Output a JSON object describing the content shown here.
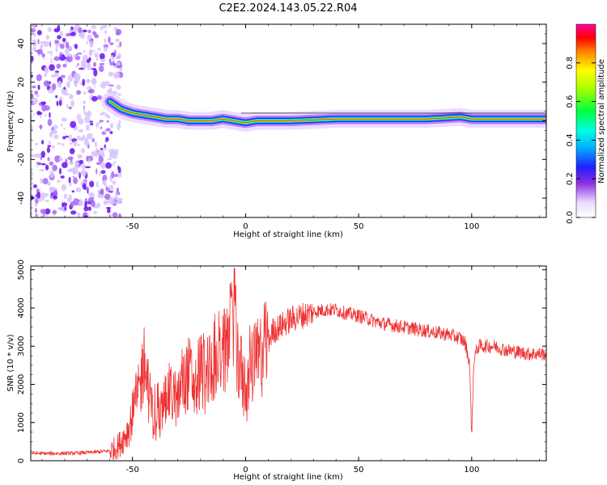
{
  "chart_data": [
    {
      "type": "heatmap",
      "title": "C2E2.2024.143.05.22.R04",
      "xlabel": "Height of straight line (km)",
      "ylabel": "Frequency (Hz)",
      "xlim": [
        -95,
        133
      ],
      "ylim": [
        -50,
        50
      ],
      "x_ticks": [
        "-50",
        "0",
        "50",
        "100"
      ],
      "y_ticks": [
        "-40",
        "-20",
        "0",
        "20",
        "40"
      ],
      "colorbar": {
        "label": "Normalized spectral amplitude",
        "range": [
          0,
          1
        ],
        "ticks": [
          "0.0",
          "0.2",
          "0.4",
          "0.6",
          "0.8"
        ]
      },
      "ridge": {
        "x": [
          -60,
          -55,
          -50,
          -45,
          -40,
          -35,
          -30,
          -25,
          -20,
          -15,
          -10,
          -5,
          0,
          5,
          10,
          20,
          40,
          60,
          80,
          95,
          100,
          110,
          133
        ],
        "y": [
          10,
          6,
          4,
          3,
          2,
          1,
          1,
          0,
          0,
          0,
          1,
          0,
          -1,
          0,
          0,
          0,
          1,
          1,
          1,
          2,
          1,
          1,
          1
        ]
      }
    },
    {
      "type": "line",
      "xlabel": "Height of straight line (km)",
      "ylabel": "SNR (10 * v/v)",
      "xlim": [
        -95,
        133
      ],
      "ylim": [
        0,
        5100
      ],
      "x_ticks": [
        "-50",
        "0",
        "50",
        "100"
      ],
      "y_ticks": [
        "0",
        "1000",
        "2000",
        "3000",
        "4000",
        "5000"
      ],
      "series": [
        {
          "color": "#ee3333",
          "x": [
            -95,
            -90,
            -85,
            -80,
            -75,
            -70,
            -65,
            -60,
            -57,
            -55,
            -52,
            -50,
            -47,
            -45,
            -42,
            -40,
            -37,
            -35,
            -30,
            -28,
            -25,
            -22,
            -20,
            -18,
            -15,
            -12,
            -10,
            -8,
            -6,
            -5,
            -4,
            -2,
            0,
            2,
            4,
            6,
            8,
            10,
            12,
            15,
            20,
            25,
            30,
            35,
            40,
            45,
            50,
            55,
            60,
            65,
            70,
            75,
            80,
            85,
            90,
            95,
            97,
            99,
            100,
            101,
            103,
            105,
            110,
            115,
            120,
            125,
            130,
            133
          ],
          "y": [
            200,
            190,
            190,
            195,
            200,
            215,
            230,
            260,
            350,
            500,
            800,
            1200,
            1800,
            2600,
            1500,
            900,
            1300,
            1800,
            1600,
            2100,
            2300,
            1900,
            2400,
            2200,
            2600,
            2800,
            2700,
            3100,
            3400,
            4700,
            3000,
            2300,
            1500,
            2400,
            2500,
            2700,
            2900,
            3100,
            3400,
            3500,
            3700,
            3800,
            3900,
            3950,
            3950,
            3850,
            3800,
            3700,
            3600,
            3550,
            3500,
            3450,
            3400,
            3350,
            3300,
            3200,
            3100,
            2600,
            700,
            2700,
            3000,
            3000,
            3000,
            2900,
            2850,
            2800,
            2800,
            2800
          ]
        }
      ]
    }
  ],
  "colors": {
    "line": "#ee3333",
    "ridge_core": "#ff2020",
    "halo": "#c060ff"
  }
}
